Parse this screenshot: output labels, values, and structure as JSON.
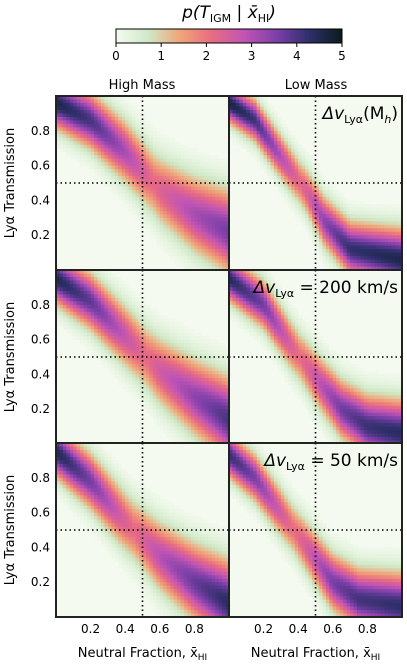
{
  "chart_data": {
    "type": "heatmap",
    "colorbar": {
      "label_main": "p(T",
      "label_sub1": "IGM",
      "label_mid": " | x̄",
      "label_sub2": "HI",
      "label_end": ")",
      "range": [
        0,
        5
      ],
      "ticks": [
        "0",
        "1",
        "2",
        "3",
        "4",
        "5"
      ],
      "colors": [
        "#f4faef",
        "#cfe9c7",
        "#f0a476",
        "#e86a83",
        "#c054b5",
        "#7a3fa8",
        "#2d2f6a",
        "#0b1b1c"
      ]
    },
    "columns": [
      "High Mass",
      "Low Mass"
    ],
    "ylabel": "Lyα Transmission",
    "xlabel": {
      "main": "Neutral Fraction, x̄",
      "sub": "HI"
    },
    "xticks": [
      "0.2",
      "0.4",
      "0.6",
      "0.8"
    ],
    "yticks": [
      "0.8",
      "0.6",
      "0.4",
      "0.2"
    ],
    "xlim": [
      0,
      1
    ],
    "ylim": [
      0,
      1
    ],
    "reference_lines": {
      "x": 0.5,
      "y": 0.5
    },
    "row_annotations": [
      {
        "pre": "Δv",
        "sub": "Lyα",
        "post": "(M",
        "sub2": "h",
        "end": ")"
      },
      {
        "pre": "Δv",
        "sub": "Lyα",
        "post": " = 200 km/s",
        "sub2": "",
        "end": ""
      },
      {
        "pre": "Δv",
        "sub": "Lyα",
        "post": " = 50 km/s",
        "sub2": "",
        "end": ""
      }
    ],
    "panels": [
      {
        "row": 0,
        "col": 0,
        "name": "High Mass, Δv(Mh)",
        "ridge": [
          [
            0.0,
            0.96
          ],
          [
            0.2,
            0.86
          ],
          [
            0.4,
            0.68
          ],
          [
            0.6,
            0.46
          ],
          [
            0.8,
            0.32
          ],
          [
            1.0,
            0.22
          ]
        ],
        "peak": 4.8,
        "width": 0.09,
        "spread": 0.03
      },
      {
        "row": 0,
        "col": 1,
        "name": "Low Mass, Δv(Mh)",
        "ridge": [
          [
            0.0,
            0.96
          ],
          [
            0.15,
            0.86
          ],
          [
            0.3,
            0.65
          ],
          [
            0.45,
            0.45
          ],
          [
            0.55,
            0.28
          ],
          [
            0.7,
            0.12
          ],
          [
            1.0,
            0.06
          ]
        ],
        "peak": 4.9,
        "width": 0.07,
        "spread": 0.02
      },
      {
        "row": 1,
        "col": 0,
        "name": "High Mass, 200 km/s",
        "ridge": [
          [
            0.0,
            0.95
          ],
          [
            0.2,
            0.82
          ],
          [
            0.4,
            0.62
          ],
          [
            0.6,
            0.42
          ],
          [
            0.8,
            0.27
          ],
          [
            1.0,
            0.14
          ]
        ],
        "peak": 4.8,
        "width": 0.09,
        "spread": 0.03
      },
      {
        "row": 1,
        "col": 1,
        "name": "Low Mass, 200 km/s",
        "ridge": [
          [
            0.0,
            0.95
          ],
          [
            0.2,
            0.8
          ],
          [
            0.35,
            0.58
          ],
          [
            0.5,
            0.38
          ],
          [
            0.65,
            0.2
          ],
          [
            0.8,
            0.1
          ],
          [
            1.0,
            0.06
          ]
        ],
        "peak": 4.7,
        "width": 0.08,
        "spread": 0.02
      },
      {
        "row": 2,
        "col": 0,
        "name": "High Mass, 50 km/s",
        "ridge": [
          [
            0.0,
            0.95
          ],
          [
            0.2,
            0.78
          ],
          [
            0.4,
            0.55
          ],
          [
            0.6,
            0.35
          ],
          [
            0.8,
            0.2
          ],
          [
            1.0,
            0.08
          ]
        ],
        "peak": 4.8,
        "width": 0.09,
        "spread": 0.03
      },
      {
        "row": 2,
        "col": 1,
        "name": "Low Mass, 50 km/s",
        "ridge": [
          [
            0.0,
            0.93
          ],
          [
            0.15,
            0.8
          ],
          [
            0.3,
            0.6
          ],
          [
            0.45,
            0.4
          ],
          [
            0.6,
            0.2
          ],
          [
            0.75,
            0.1
          ],
          [
            1.0,
            0.06
          ]
        ],
        "peak": 4.6,
        "width": 0.08,
        "spread": 0.02
      }
    ]
  }
}
